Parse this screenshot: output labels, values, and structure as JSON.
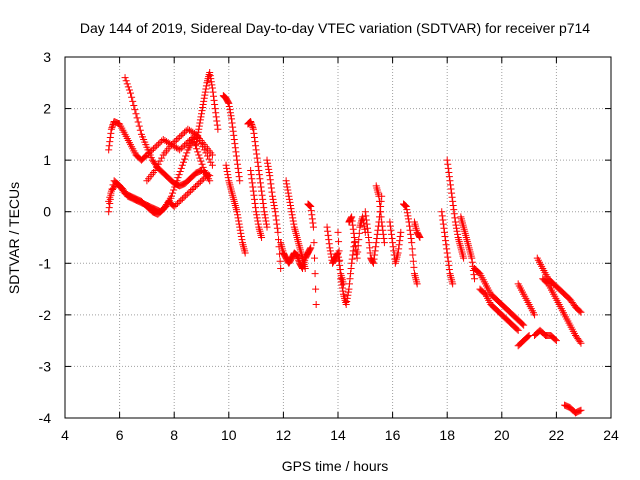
{
  "chart_data": {
    "type": "scatter",
    "title": "Day 144 of 2019, Sidereal Day-to-day VTEC variation (SDTVAR) for receiver p714",
    "xlabel": "GPS time / hours",
    "ylabel": "SDTVAR / TECUs",
    "xlim": [
      4,
      24
    ],
    "ylim": [
      -4,
      3
    ],
    "xticks": [
      "4",
      "6",
      "8",
      "10",
      "12",
      "14",
      "16",
      "18",
      "20",
      "22",
      "24"
    ],
    "yticks": [
      "-4",
      "-3",
      "-2",
      "-1",
      "0",
      "1",
      "2",
      "3"
    ],
    "grid": true,
    "marker": "plus",
    "colors": {
      "series": "#ff0000",
      "grid": "#a0a0a0",
      "axis": "#000000",
      "background": "#ffffff"
    },
    "series": [
      {
        "name": "SDTVAR",
        "tracks": [
          {
            "x": [
              5.6,
              5.7,
              5.8,
              6.0,
              6.2,
              6.4,
              6.6,
              6.8,
              7.0,
              7.3,
              7.6,
              7.9,
              8.2,
              8.5,
              8.8,
              9.1,
              9.4
            ],
            "y": [
              1.2,
              1.6,
              1.75,
              1.7,
              1.5,
              1.3,
              1.1,
              1.0,
              1.1,
              1.25,
              1.4,
              1.3,
              1.2,
              1.35,
              1.5,
              1.3,
              1.1
            ]
          },
          {
            "x": [
              6.2,
              6.4,
              6.6,
              6.8,
              7.0,
              7.2,
              7.4,
              7.6,
              7.8,
              8.0,
              8.2,
              8.4,
              8.6,
              8.8,
              9.0,
              9.3
            ],
            "y": [
              2.6,
              2.3,
              1.9,
              1.5,
              1.25,
              1.0,
              0.85,
              0.75,
              0.65,
              0.55,
              0.5,
              0.55,
              0.65,
              0.75,
              0.8,
              0.7
            ]
          },
          {
            "x": [
              5.6,
              5.7,
              5.9,
              6.1,
              6.3,
              6.5,
              6.7,
              6.9,
              7.1,
              7.3,
              7.5,
              7.7,
              7.9,
              8.1,
              8.3,
              8.5,
              8.7,
              8.9,
              9.1,
              9.3
            ],
            "y": [
              0.0,
              0.4,
              0.55,
              0.45,
              0.3,
              0.25,
              0.2,
              0.15,
              0.1,
              0.05,
              0.0,
              0.1,
              0.3,
              0.6,
              0.9,
              1.2,
              1.4,
              1.1,
              0.8,
              0.6
            ]
          },
          {
            "x": [
              5.6,
              5.8,
              6.0,
              6.2,
              6.4,
              6.6,
              6.8,
              7.0,
              7.2,
              7.4,
              7.6,
              7.8,
              8.0,
              8.3,
              8.6,
              8.9,
              9.2
            ],
            "y": [
              0.2,
              0.6,
              0.5,
              0.35,
              0.3,
              0.25,
              0.2,
              0.1,
              0.0,
              -0.05,
              0.05,
              0.2,
              0.1,
              0.25,
              0.4,
              0.55,
              0.7
            ]
          },
          {
            "x": [
              7.0,
              7.3,
              7.6,
              7.9,
              8.2,
              8.5,
              8.8,
              9.1,
              9.4
            ],
            "y": [
              0.6,
              0.8,
              1.1,
              1.3,
              1.45,
              1.6,
              1.5,
              1.2,
              0.9
            ]
          },
          {
            "x": [
              8.8,
              8.9,
              9.0,
              9.1,
              9.2,
              9.3,
              9.4,
              9.5,
              9.6
            ],
            "y": [
              1.3,
              1.6,
              1.9,
              2.2,
              2.5,
              2.7,
              2.4,
              2.0,
              1.6
            ]
          },
          {
            "x": [
              9.8,
              9.9,
              10.0,
              10.1,
              10.2,
              10.3,
              10.4
            ],
            "y": [
              2.25,
              2.2,
              2.1,
              1.8,
              1.4,
              1.0,
              0.6
            ]
          },
          {
            "x": [
              9.9,
              10.0,
              10.1,
              10.2,
              10.3,
              10.4,
              10.5,
              10.6
            ],
            "y": [
              0.9,
              0.6,
              0.4,
              0.2,
              0.0,
              -0.3,
              -0.6,
              -0.8
            ]
          },
          {
            "x": [
              10.7,
              10.8,
              10.9,
              11.0,
              11.1,
              11.2,
              11.3,
              11.4
            ],
            "y": [
              1.7,
              1.75,
              1.6,
              1.2,
              0.8,
              0.4,
              0.0,
              -0.3
            ]
          },
          {
            "x": [
              10.8,
              10.9,
              11.0,
              11.1,
              11.2
            ],
            "y": [
              0.8,
              0.4,
              0.0,
              -0.3,
              -0.5
            ]
          },
          {
            "x": [
              11.4,
              11.5,
              11.6,
              11.7,
              11.8,
              11.9
            ],
            "y": [
              1.0,
              0.7,
              0.3,
              0.0,
              -0.4,
              -1.1
            ]
          },
          {
            "x": [
              11.9,
              12.0,
              12.1,
              12.2,
              12.3,
              12.4,
              12.5,
              12.6,
              12.7,
              12.8,
              12.9,
              13.0
            ],
            "y": [
              -0.6,
              -0.8,
              -0.9,
              -1.0,
              -0.9,
              -0.8,
              -0.85,
              -1.0,
              -1.1,
              -0.9,
              -0.8,
              -0.7
            ]
          },
          {
            "x": [
              12.1,
              12.2,
              12.3,
              12.4,
              12.5,
              12.6,
              12.7,
              12.8
            ],
            "y": [
              0.6,
              0.3,
              0.0,
              -0.3,
              -0.5,
              -0.7,
              -0.9,
              -1.1
            ]
          },
          {
            "x": [
              12.9,
              13.0,
              13.1,
              13.2
            ],
            "y": [
              0.15,
              0.1,
              -0.3,
              -1.8
            ]
          },
          {
            "x": [
              13.6,
              13.7,
              13.8,
              13.9,
              14.0,
              14.1,
              14.2
            ],
            "y": [
              -0.3,
              -0.7,
              -1.0,
              -0.9,
              -0.8,
              -1.2,
              -1.4
            ]
          },
          {
            "x": [
              14.0,
              14.1,
              14.2,
              14.3,
              14.4,
              14.5,
              14.6
            ],
            "y": [
              -0.4,
              -1.3,
              -1.6,
              -1.8,
              -1.5,
              -1.0,
              -0.6
            ]
          },
          {
            "x": [
              14.4,
              14.5,
              14.6,
              14.7,
              14.8,
              14.9,
              15.0
            ],
            "y": [
              -0.2,
              -0.1,
              -0.5,
              -0.9,
              -0.3,
              -0.1,
              -0.4
            ]
          },
          {
            "x": [
              15.0,
              15.1,
              15.2,
              15.3,
              15.4,
              15.5,
              15.6
            ],
            "y": [
              0.0,
              -0.4,
              -0.9,
              -1.0,
              -0.6,
              -0.2,
              0.3
            ]
          },
          {
            "x": [
              15.4,
              15.5,
              15.6,
              15.7
            ],
            "y": [
              0.5,
              0.3,
              -0.2,
              -0.6
            ]
          },
          {
            "x": [
              15.9,
              16.0,
              16.1,
              16.2,
              16.3
            ],
            "y": [
              -0.2,
              -0.6,
              -1.0,
              -0.8,
              -0.4
            ]
          },
          {
            "x": [
              16.4,
              16.5,
              16.6,
              16.7,
              16.8,
              16.9
            ],
            "y": [
              0.15,
              0.1,
              -0.2,
              -0.6,
              -1.2,
              -1.4
            ]
          },
          {
            "x": [
              16.8,
              16.9,
              17.0
            ],
            "y": [
              -0.2,
              -0.4,
              -0.5
            ]
          },
          {
            "x": [
              17.8,
              17.9,
              18.0,
              18.1,
              18.2
            ],
            "y": [
              0.0,
              -0.4,
              -0.8,
              -1.2,
              -1.4
            ]
          },
          {
            "x": [
              18.0,
              18.1,
              18.2,
              18.3,
              18.4,
              18.5,
              18.6
            ],
            "y": [
              1.0,
              0.6,
              0.2,
              -0.2,
              -0.5,
              -0.7,
              -0.9
            ]
          },
          {
            "x": [
              18.5,
              18.6,
              18.7,
              18.8,
              18.9,
              19.0
            ],
            "y": [
              -0.1,
              -0.3,
              -0.5,
              -0.7,
              -0.9,
              -1.3
            ]
          },
          {
            "x": [
              19.0,
              19.2,
              19.4,
              19.6,
              19.8,
              20.0,
              20.2,
              20.4,
              20.6,
              20.8
            ],
            "y": [
              -1.1,
              -1.2,
              -1.4,
              -1.6,
              -1.7,
              -1.8,
              -1.9,
              -2.0,
              -2.1,
              -2.2
            ]
          },
          {
            "x": [
              19.2,
              19.4,
              19.6,
              19.8,
              20.0,
              20.2,
              20.4,
              20.6
            ],
            "y": [
              -1.5,
              -1.6,
              -1.8,
              -1.9,
              -2.0,
              -2.1,
              -2.2,
              -2.3
            ]
          },
          {
            "x": [
              20.6,
              20.8,
              21.0,
              21.2
            ],
            "y": [
              -1.4,
              -1.6,
              -1.8,
              -2.0
            ]
          },
          {
            "x": [
              20.6,
              20.8,
              21.0
            ],
            "y": [
              -2.6,
              -2.5,
              -2.4
            ]
          },
          {
            "x": [
              21.2,
              21.4,
              21.6,
              21.8,
              22.0
            ],
            "y": [
              -2.4,
              -2.3,
              -2.4,
              -2.4,
              -2.5
            ]
          },
          {
            "x": [
              21.3,
              21.5,
              21.7,
              21.9,
              22.1,
              22.3,
              22.5,
              22.7,
              22.9
            ],
            "y": [
              -0.9,
              -1.1,
              -1.3,
              -1.4,
              -1.5,
              -1.6,
              -1.7,
              -1.85,
              -1.95
            ]
          },
          {
            "x": [
              21.5,
              21.7,
              21.9,
              22.1,
              22.3,
              22.5,
              22.7,
              22.9
            ],
            "y": [
              -1.3,
              -1.4,
              -1.6,
              -1.8,
              -2.0,
              -2.2,
              -2.4,
              -2.55
            ]
          },
          {
            "x": [
              22.3,
              22.5,
              22.7,
              22.9
            ],
            "y": [
              -3.75,
              -3.8,
              -3.9,
              -3.85
            ]
          }
        ]
      }
    ]
  }
}
